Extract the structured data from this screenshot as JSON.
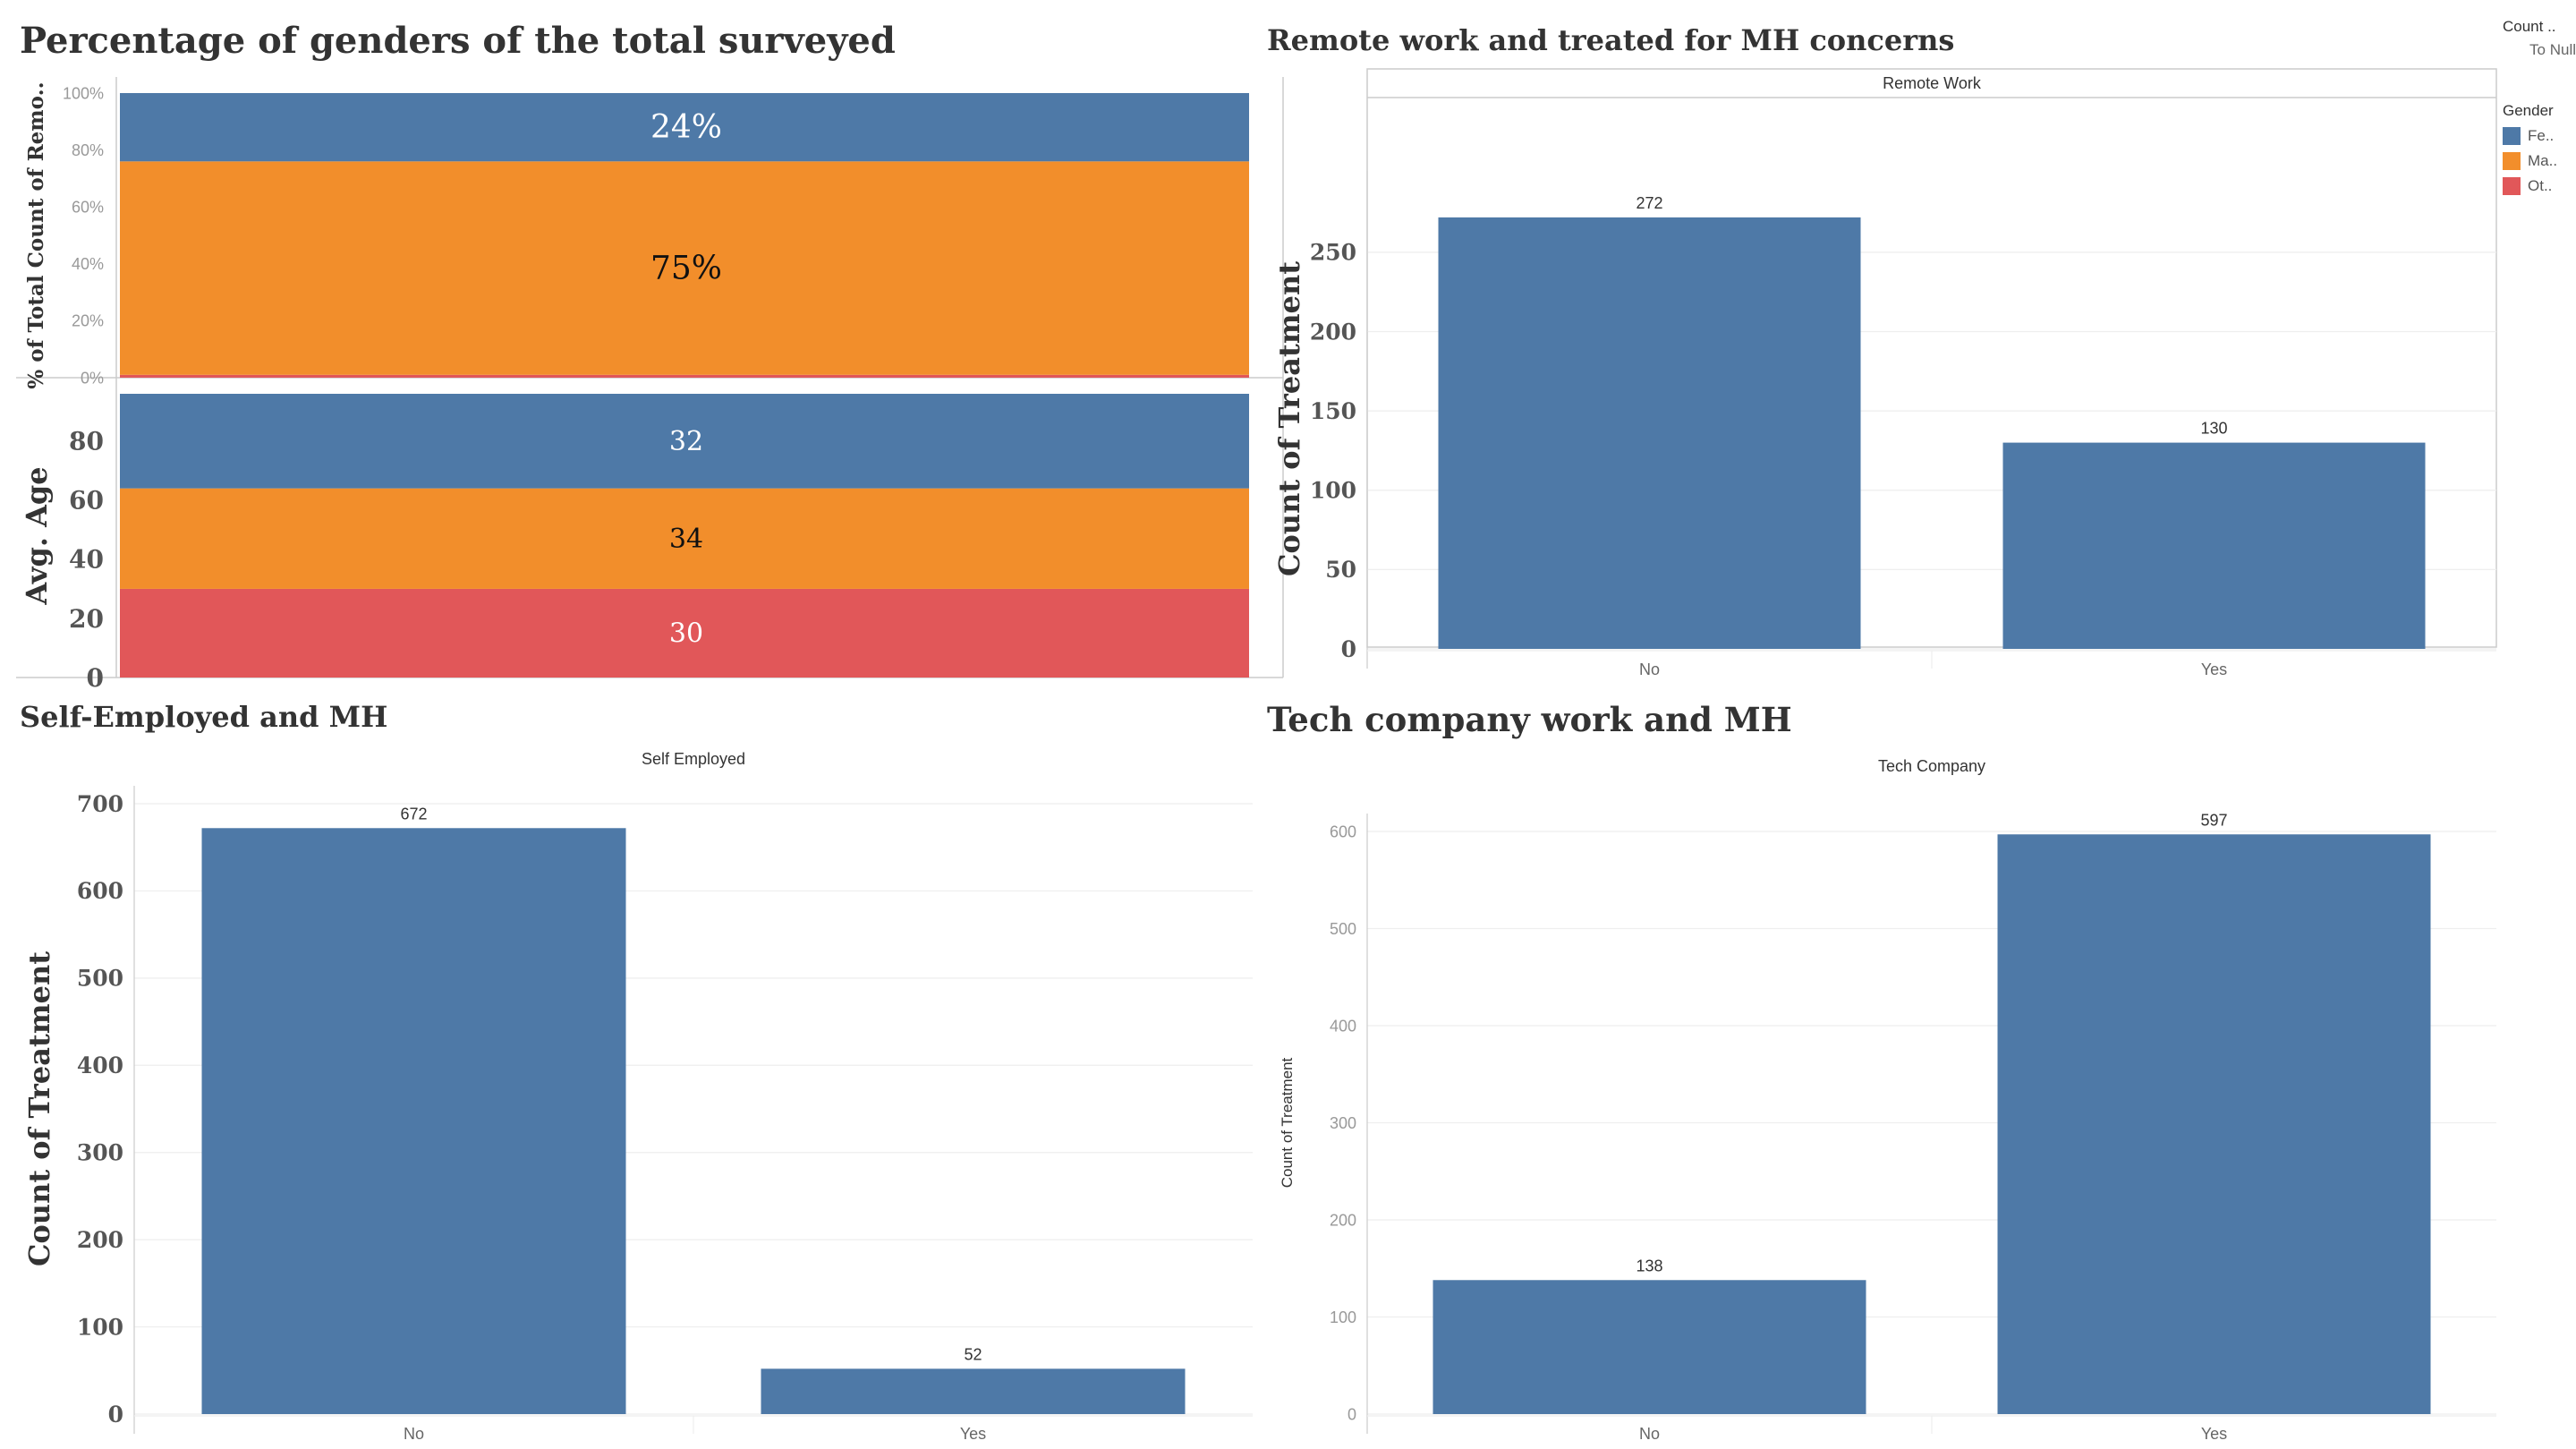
{
  "colors": {
    "female": "#4e79a7",
    "male": "#f28e2b",
    "other": "#e15759",
    "grid": "#eeeeee",
    "axis": "#cccccc",
    "tick": "#999999"
  },
  "legend": {
    "size_title": "Count ..",
    "size_subtitle": "To Null",
    "gender_title": "Gender",
    "items": [
      {
        "label": "Fe..",
        "color": "#4e79a7"
      },
      {
        "label": "Ma..",
        "color": "#f28e2b"
      },
      {
        "label": "Ot..",
        "color": "#e15759"
      }
    ]
  },
  "chart_data": [
    {
      "type": "bar",
      "stacked": true,
      "title": "Percentage of genders of the total surveyed",
      "ylabel": "% of Total Count of Remo..",
      "ylim": [
        0,
        100
      ],
      "yticks": [
        "0%",
        "20%",
        "40%",
        "60%",
        "80%",
        "100%"
      ],
      "series": [
        {
          "name": "Other",
          "values": [
            1
          ],
          "label": ""
        },
        {
          "name": "Male",
          "values": [
            75
          ],
          "label": "75%"
        },
        {
          "name": "Female",
          "values": [
            24
          ],
          "label": "24%"
        }
      ]
    },
    {
      "type": "bar",
      "stacked": true,
      "title": "",
      "ylabel": "Avg. Age",
      "ylim": [
        0,
        96
      ],
      "yticks": [
        "0",
        "20",
        "40",
        "60",
        "80"
      ],
      "series": [
        {
          "name": "Other",
          "values": [
            30
          ],
          "label": "30"
        },
        {
          "name": "Male",
          "values": [
            34
          ],
          "label": "34"
        },
        {
          "name": "Female",
          "values": [
            32
          ],
          "label": "32"
        }
      ]
    },
    {
      "type": "bar",
      "title": "Remote work and treated for MH concerns",
      "header": "Remote Work",
      "ylabel": "Count of Treatment",
      "categories": [
        "No",
        "Yes"
      ],
      "values": [
        272,
        130
      ],
      "ylim": [
        0,
        290
      ],
      "yticks": [
        "0",
        "50",
        "100",
        "150",
        "200",
        "250"
      ]
    },
    {
      "type": "bar",
      "title": "Self-Employed and MH",
      "header": "Self Employed",
      "ylabel": "Count of Treatment",
      "categories": [
        "No",
        "Yes"
      ],
      "values": [
        672,
        52
      ],
      "ylim": [
        0,
        700
      ],
      "yticks": [
        "0",
        "100",
        "200",
        "300",
        "400",
        "500",
        "600",
        "700"
      ]
    },
    {
      "type": "bar",
      "title": "Tech company work and MH",
      "header": "Tech Company",
      "ylabel": "Count of Treatment",
      "categories": [
        "No",
        "Yes"
      ],
      "values": [
        138,
        597
      ],
      "ylim": [
        0,
        600
      ],
      "yticks": [
        "0",
        "100",
        "200",
        "300",
        "400",
        "500",
        "600"
      ]
    }
  ]
}
